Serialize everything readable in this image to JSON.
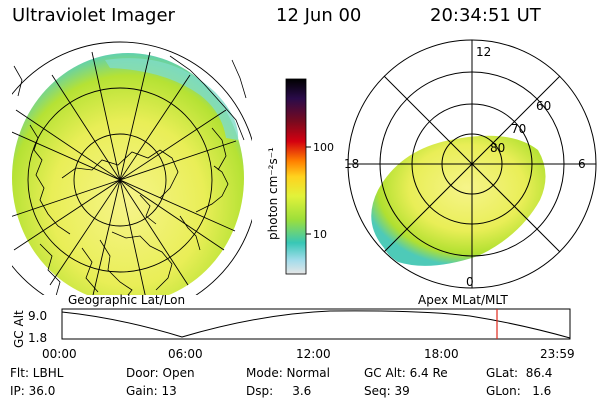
{
  "header": {
    "title": "Ultraviolet Imager",
    "date": "12 Jun 00",
    "time": "20:34:51 UT"
  },
  "left_panel": {
    "label": "Geographic Lat/Lon"
  },
  "right_panel": {
    "label": "Apex MLat/MLT",
    "mlt_labels": {
      "top": "12",
      "left": "18",
      "right": "6",
      "bottom": "0"
    },
    "lat_labels": [
      "60",
      "70",
      "80"
    ]
  },
  "colorbar": {
    "unit_label": "photon cm⁻²s⁻¹",
    "tick_labels": [
      "100",
      "10"
    ],
    "colors": [
      "#000000",
      "#2a0b4a",
      "#7a0a1e",
      "#d40010",
      "#ff7f00",
      "#ffd21e",
      "#e2f23a",
      "#9ddf3a",
      "#38c7b6",
      "#a3dceb",
      "#e6e6e6"
    ]
  },
  "timeline": {
    "axis_label": "GC Alt",
    "y_ticks": [
      "9.0",
      "1.8"
    ],
    "x_ticks": [
      "00:00",
      "06:00",
      "12:00",
      "18:00",
      "23:59"
    ],
    "current_time_marker": "20:34:51"
  },
  "footer": {
    "row1": [
      {
        "key": "flt",
        "text": "Flt: LBHL"
      },
      {
        "key": "door",
        "text": "Door: Open"
      },
      {
        "key": "mode",
        "text": "Mode: Normal"
      },
      {
        "key": "gcalt",
        "text": "GC Alt: 6.4 Re"
      },
      {
        "key": "glat",
        "text": "GLat:  86.4"
      }
    ],
    "row2": [
      {
        "key": "ip",
        "text": "IP: 36.0"
      },
      {
        "key": "gain",
        "text": "Gain: 13"
      },
      {
        "key": "dsp",
        "text": "Dsp:     3.6"
      },
      {
        "key": "seq",
        "text": "Seq: 39"
      },
      {
        "key": "glon",
        "text": "GLon:   1.6"
      }
    ]
  },
  "colors": {
    "aurora_edge": "#48c9c0",
    "aurora_mid": "#b8e432",
    "aurora_core": "#f3f177",
    "marker": "#e0281c"
  }
}
